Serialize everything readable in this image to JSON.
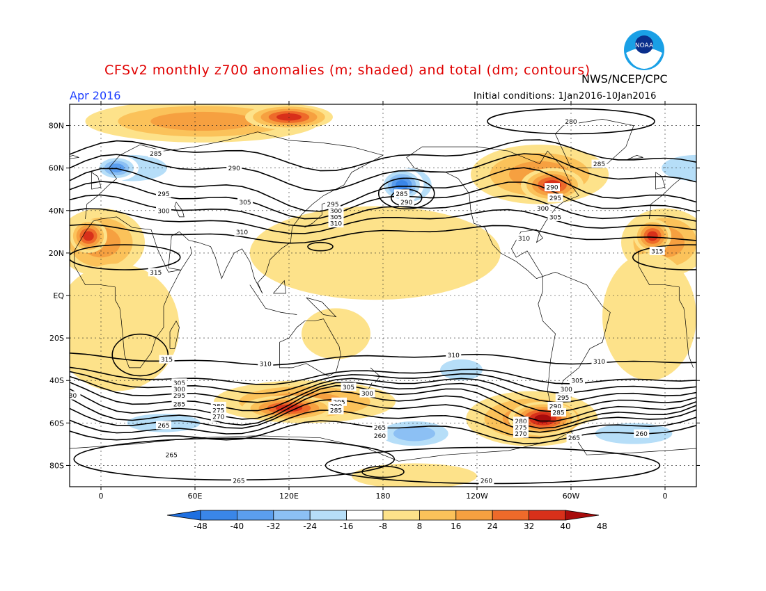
{
  "header": {
    "title": "CFSv2 monthly z700 anomalies (m; shaded) and total (dm; contours)",
    "org": "NWS/NCEP/CPC",
    "month": "Apr 2016",
    "init": "Initial conditions: 1Jan2016-10Jan2016",
    "logo_text": "NOAA"
  },
  "axes": {
    "lat_labels": [
      "80N",
      "60N",
      "40N",
      "20N",
      "EQ",
      "20S",
      "40S",
      "60S",
      "80S"
    ],
    "lat_values": [
      80,
      60,
      40,
      20,
      0,
      -20,
      -40,
      -60,
      -80
    ],
    "lon_labels": [
      "0",
      "60E",
      "120E",
      "180",
      "120W",
      "60W",
      "0"
    ],
    "lon_values": [
      0,
      60,
      120,
      180,
      240,
      300,
      360
    ],
    "lon_range": [
      -20,
      380
    ],
    "lat_range": [
      -90,
      90
    ]
  },
  "colorbar": {
    "labels": [
      "-48",
      "-40",
      "-32",
      "-24",
      "-16",
      "-8",
      "8",
      "16",
      "24",
      "32",
      "40",
      "48"
    ],
    "colors": [
      "#1e6fe0",
      "#3a86e8",
      "#5b9eee",
      "#8cc0f4",
      "#b6def8",
      "#ffffff",
      "#fde28a",
      "#fbc25a",
      "#f6a040",
      "#ee6a2a",
      "#d8301a",
      "#a80c0c"
    ]
  },
  "contour_labels": [
    {
      "text": "280",
      "lon": 300,
      "lat": 82
    },
    {
      "text": "285",
      "lon": 35,
      "lat": 67
    },
    {
      "text": "290",
      "lon": 85,
      "lat": 60
    },
    {
      "text": "295",
      "lon": 40,
      "lat": 48
    },
    {
      "text": "300",
      "lon": 40,
      "lat": 40
    },
    {
      "text": "305",
      "lon": 92,
      "lat": 44
    },
    {
      "text": "310",
      "lon": 90,
      "lat": 30
    },
    {
      "text": "315",
      "lon": 35,
      "lat": 11
    },
    {
      "text": "285",
      "lon": 192,
      "lat": 48
    },
    {
      "text": "290",
      "lon": 195,
      "lat": 44
    },
    {
      "text": "295",
      "lon": 148,
      "lat": 43
    },
    {
      "text": "300",
      "lon": 150,
      "lat": 40
    },
    {
      "text": "305",
      "lon": 150,
      "lat": 37
    },
    {
      "text": "310",
      "lon": 150,
      "lat": 34
    },
    {
      "text": "285",
      "lon": 318,
      "lat": 62
    },
    {
      "text": "290",
      "lon": 288,
      "lat": 51
    },
    {
      "text": "295",
      "lon": 290,
      "lat": 46
    },
    {
      "text": "300",
      "lon": 282,
      "lat": 41
    },
    {
      "text": "305",
      "lon": 290,
      "lat": 37
    },
    {
      "text": "310",
      "lon": 270,
      "lat": 27
    },
    {
      "text": "315",
      "lon": 355,
      "lat": 21
    },
    {
      "text": "315",
      "lon": 42,
      "lat": -30
    },
    {
      "text": "310",
      "lon": 105,
      "lat": -32
    },
    {
      "text": "310",
      "lon": 225,
      "lat": -28
    },
    {
      "text": "310",
      "lon": 318,
      "lat": -31
    },
    {
      "text": "305",
      "lon": 50,
      "lat": -41
    },
    {
      "text": "300",
      "lon": 50,
      "lat": -44
    },
    {
      "text": "295",
      "lon": 50,
      "lat": -47
    },
    {
      "text": "285",
      "lon": 50,
      "lat": -51
    },
    {
      "text": "305",
      "lon": 158,
      "lat": -43
    },
    {
      "text": "300",
      "lon": 170,
      "lat": -46
    },
    {
      "text": "295",
      "lon": 152,
      "lat": -50
    },
    {
      "text": "290",
      "lon": 150,
      "lat": -52
    },
    {
      "text": "285",
      "lon": 150,
      "lat": -54
    },
    {
      "text": "280",
      "lon": 75,
      "lat": -52
    },
    {
      "text": "275",
      "lon": 75,
      "lat": -54
    },
    {
      "text": "270",
      "lon": 75,
      "lat": -57
    },
    {
      "text": "265",
      "lon": 40,
      "lat": -61
    },
    {
      "text": "265",
      "lon": 178,
      "lat": -62
    },
    {
      "text": "260",
      "lon": 178,
      "lat": -66
    },
    {
      "text": "265",
      "lon": 45,
      "lat": -75
    },
    {
      "text": "265",
      "lon": 88,
      "lat": -87
    },
    {
      "text": "260",
      "lon": 246,
      "lat": -87
    },
    {
      "text": "305",
      "lon": 304,
      "lat": -40
    },
    {
      "text": "300",
      "lon": 297,
      "lat": -44
    },
    {
      "text": "295",
      "lon": 295,
      "lat": -48
    },
    {
      "text": "290",
      "lon": 290,
      "lat": -52
    },
    {
      "text": "285",
      "lon": 292,
      "lat": -55
    },
    {
      "text": "280",
      "lon": 268,
      "lat": -59
    },
    {
      "text": "275",
      "lon": 268,
      "lat": -62
    },
    {
      "text": "270",
      "lon": 268,
      "lat": -65
    },
    {
      "text": "265",
      "lon": 302,
      "lat": -67
    },
    {
      "text": "260",
      "lon": 345,
      "lat": -65
    },
    {
      "text": "30",
      "lon": -18,
      "lat": -47
    }
  ],
  "anomaly_blobs": [
    {
      "lon": 65,
      "lat": 82,
      "rx": 75,
      "ry": 10,
      "value": 24
    },
    {
      "lon": 120,
      "lat": 84,
      "rx": 28,
      "ry": 6,
      "value": 40
    },
    {
      "lon": 0,
      "lat": 25,
      "rx": 28,
      "ry": 16,
      "value": 24
    },
    {
      "lon": -8,
      "lat": 28,
      "rx": 12,
      "ry": 8,
      "value": 40
    },
    {
      "lon": 360,
      "lat": 25,
      "rx": 28,
      "ry": 16,
      "value": 24
    },
    {
      "lon": 352,
      "lat": 28,
      "rx": 12,
      "ry": 8,
      "value": 40
    },
    {
      "lon": 20,
      "lat": 60,
      "rx": 36,
      "ry": 10,
      "value": -16
    },
    {
      "lon": 10,
      "lat": 60,
      "rx": 14,
      "ry": 6,
      "value": -32
    },
    {
      "lon": 380,
      "lat": 60,
      "rx": 36,
      "ry": 10,
      "value": -16
    },
    {
      "lon": 195,
      "lat": 52,
      "rx": 26,
      "ry": 13,
      "value": -16
    },
    {
      "lon": 192,
      "lat": 52,
      "rx": 14,
      "ry": 8,
      "value": -40
    },
    {
      "lon": 280,
      "lat": 57,
      "rx": 44,
      "ry": 14,
      "value": 24
    },
    {
      "lon": 288,
      "lat": 52,
      "rx": 20,
      "ry": 8,
      "value": 40
    },
    {
      "lon": 175,
      "lat": 20,
      "rx": 80,
      "ry": 22,
      "value": 8
    },
    {
      "lon": 150,
      "lat": -18,
      "rx": 22,
      "ry": 12,
      "value": 8
    },
    {
      "lon": 10,
      "lat": -15,
      "rx": 40,
      "ry": 30,
      "value": 8
    },
    {
      "lon": 350,
      "lat": -10,
      "rx": 30,
      "ry": 30,
      "value": 8
    },
    {
      "lon": 130,
      "lat": -50,
      "rx": 58,
      "ry": 10,
      "value": 24
    },
    {
      "lon": 120,
      "lat": -53,
      "rx": 30,
      "ry": 6,
      "value": 40
    },
    {
      "lon": 275,
      "lat": -58,
      "rx": 42,
      "ry": 13,
      "value": 24
    },
    {
      "lon": 282,
      "lat": -58,
      "rx": 22,
      "ry": 8,
      "value": 48
    },
    {
      "lon": 200,
      "lat": -65,
      "rx": 30,
      "ry": 8,
      "value": -24
    },
    {
      "lon": 230,
      "lat": -35,
      "rx": 22,
      "ry": 8,
      "value": -16
    },
    {
      "lon": 40,
      "lat": -60,
      "rx": 38,
      "ry": 7,
      "value": -16
    },
    {
      "lon": 340,
      "lat": -65,
      "rx": 40,
      "ry": 8,
      "value": -16
    },
    {
      "lon": 200,
      "lat": -85,
      "rx": 40,
      "ry": 6,
      "value": 8
    }
  ]
}
